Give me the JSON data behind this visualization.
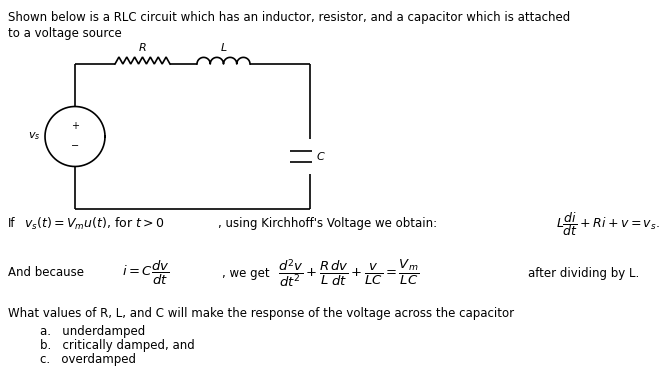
{
  "bg_color": "#ffffff",
  "text_color": "#000000",
  "line1": "Shown below is a RLC circuit which has an inductor, resistor, and a capacitor which is attached",
  "line2": "to a voltage source",
  "what_values": "What values of R, L, and C will make the response of the voltage across the capacitor",
  "item_a": "a.   underdamped",
  "item_b": "b.   critically damped, and",
  "item_c": "c.   overdamped"
}
